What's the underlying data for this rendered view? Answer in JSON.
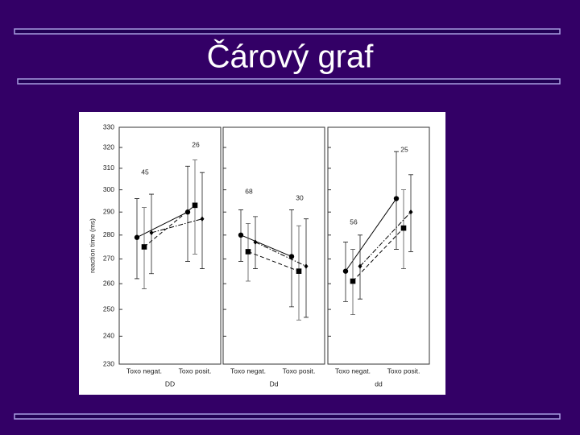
{
  "slide": {
    "title": "Čárový graf"
  },
  "chart_data": [
    {
      "type": "line",
      "xlabel": "DD",
      "ylabel": "reaction time (ms)",
      "categories": [
        "Toxo negat.",
        "Toxo posit."
      ],
      "ylim": [
        230,
        330
      ],
      "yticks": [
        230,
        240,
        250,
        260,
        270,
        280,
        290,
        300,
        310,
        320,
        330
      ],
      "log_y": true,
      "color": "#000000",
      "annotations": [
        {
          "text": "45",
          "category": 0
        },
        {
          "text": "26",
          "category": 1
        }
      ],
      "series": [
        {
          "marker": "circle",
          "dash": "solid",
          "values": [
            279,
            290
          ],
          "errors": [
            17,
            21
          ]
        },
        {
          "marker": "square",
          "dash": "dashed",
          "values": [
            275,
            293
          ],
          "errors": [
            17,
            21
          ]
        },
        {
          "marker": "diamond",
          "dash": "dashdot",
          "values": [
            281,
            287
          ],
          "errors": [
            17,
            21
          ]
        }
      ]
    },
    {
      "type": "line",
      "xlabel": "Dd",
      "categories": [
        "Toxo negat.",
        "Toxo posit."
      ],
      "ylim": [
        230,
        330
      ],
      "yticks": [
        230,
        240,
        250,
        260,
        270,
        280,
        290,
        300,
        310,
        320,
        330
      ],
      "log_y": true,
      "color": "#000000",
      "annotations": [
        {
          "text": "68",
          "category": 0
        },
        {
          "text": "30",
          "category": 1
        }
      ],
      "series": [
        {
          "marker": "circle",
          "dash": "solid",
          "values": [
            280,
            271
          ],
          "errors": [
            11,
            20
          ]
        },
        {
          "marker": "square",
          "dash": "dashed",
          "values": [
            273,
            265
          ],
          "errors": [
            12,
            19
          ]
        },
        {
          "marker": "diamond",
          "dash": "dashdot",
          "values": [
            277,
            267
          ],
          "errors": [
            11,
            20
          ]
        }
      ]
    },
    {
      "type": "line",
      "xlabel": "dd",
      "categories": [
        "Toxo negat.",
        "Toxo posit."
      ],
      "ylim": [
        230,
        330
      ],
      "yticks": [
        230,
        240,
        250,
        260,
        270,
        280,
        290,
        300,
        310,
        320,
        330
      ],
      "log_y": true,
      "color": "#000000",
      "annotations": [
        {
          "text": "56",
          "category": 0
        },
        {
          "text": "25",
          "category": 1
        }
      ],
      "series": [
        {
          "marker": "circle",
          "dash": "solid",
          "values": [
            265,
            296
          ],
          "errors": [
            12,
            22
          ]
        },
        {
          "marker": "square",
          "dash": "dashed",
          "values": [
            261,
            283
          ],
          "errors": [
            13,
            17
          ]
        },
        {
          "marker": "diamond",
          "dash": "dashdot",
          "values": [
            267,
            290
          ],
          "errors": [
            13,
            17
          ]
        }
      ]
    }
  ]
}
